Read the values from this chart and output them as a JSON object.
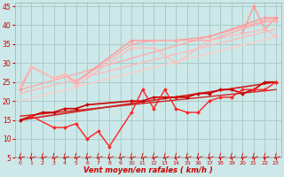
{
  "background_color": "#cce8e8",
  "grid_color": "#aacccc",
  "xlabel": "Vent moyen/en rafales ( km/h )",
  "xlabel_color": "#cc0000",
  "tick_color": "#cc0000",
  "xlim": [
    -0.5,
    23.5
  ],
  "ylim": [
    5,
    46
  ],
  "yticks": [
    5,
    10,
    15,
    20,
    25,
    30,
    35,
    40,
    45
  ],
  "xticks": [
    0,
    1,
    2,
    3,
    4,
    5,
    6,
    7,
    8,
    9,
    10,
    11,
    12,
    13,
    14,
    15,
    16,
    17,
    18,
    19,
    20,
    21,
    22,
    23
  ],
  "series": [
    {
      "x": [
        0,
        1,
        3,
        4,
        5,
        10,
        12,
        14,
        17,
        22,
        23
      ],
      "y": [
        23,
        29,
        26,
        27,
        25,
        36,
        36,
        36,
        37,
        42,
        42
      ],
      "color": "#ff9999",
      "lw": 1.0,
      "marker": "D",
      "ms": 2.0,
      "linestyle": "-"
    },
    {
      "x": [
        20,
        21,
        22,
        23
      ],
      "y": [
        38,
        45,
        39,
        42
      ],
      "color": "#ff9999",
      "lw": 1.0,
      "marker": "D",
      "ms": 2.0,
      "linestyle": "-"
    },
    {
      "x": [
        0,
        23
      ],
      "y": [
        23,
        42
      ],
      "color": "#ffaaaa",
      "lw": 1.0,
      "marker": null,
      "ms": 0,
      "linestyle": "-"
    },
    {
      "x": [
        0,
        23
      ],
      "y": [
        22,
        39
      ],
      "color": "#ffbbbb",
      "lw": 1.0,
      "marker": null,
      "ms": 0,
      "linestyle": "-"
    },
    {
      "x": [
        0,
        23
      ],
      "y": [
        20,
        37
      ],
      "color": "#ffcccc",
      "lw": 1.0,
      "marker": null,
      "ms": 0,
      "linestyle": "-"
    },
    {
      "x": [
        0,
        1,
        3,
        4,
        5,
        10,
        12,
        17,
        22,
        23
      ],
      "y": [
        24,
        29,
        26,
        27,
        25,
        35,
        36,
        36,
        41,
        41
      ],
      "color": "#ffaaaa",
      "lw": 1.0,
      "marker": "D",
      "ms": 2.0,
      "linestyle": "-"
    },
    {
      "x": [
        0,
        1,
        3,
        4,
        5,
        10,
        12,
        14,
        17,
        22,
        23
      ],
      "y": [
        24,
        29,
        26,
        27,
        24,
        34,
        34,
        30,
        36,
        39,
        37
      ],
      "color": "#ffbbbb",
      "lw": 1.0,
      "marker": "D",
      "ms": 2.0,
      "linestyle": "-"
    },
    {
      "x": [
        0,
        23
      ],
      "y": [
        15,
        25
      ],
      "color": "#cc2222",
      "lw": 1.2,
      "marker": null,
      "ms": 0,
      "linestyle": "-"
    },
    {
      "x": [
        0,
        23
      ],
      "y": [
        16,
        23
      ],
      "color": "#cc2222",
      "lw": 1.0,
      "marker": null,
      "ms": 0,
      "linestyle": "-"
    },
    {
      "x": [
        0,
        1,
        2,
        3,
        4,
        5,
        6,
        10,
        11,
        12,
        13,
        14,
        15,
        16,
        17,
        18,
        19,
        20,
        21,
        22,
        23
      ],
      "y": [
        15,
        16,
        17,
        17,
        18,
        18,
        19,
        20,
        20,
        21,
        21,
        21,
        21,
        22,
        22,
        23,
        23,
        22,
        23,
        25,
        25
      ],
      "color": "#cc0000",
      "lw": 1.2,
      "marker": "D",
      "ms": 2.0,
      "linestyle": "-"
    },
    {
      "x": [
        1,
        3,
        4,
        5,
        6,
        7,
        8,
        10,
        11,
        12,
        13,
        14,
        15,
        16,
        17,
        18,
        19,
        20,
        21,
        22,
        23
      ],
      "y": [
        16,
        13,
        13,
        14,
        10,
        12,
        8,
        17,
        23,
        18,
        23,
        18,
        17,
        17,
        20,
        21,
        21,
        23,
        23,
        23,
        25
      ],
      "color": "#ff2222",
      "lw": 1.0,
      "marker": "D",
      "ms": 2.0,
      "linestyle": "-"
    }
  ],
  "arrows_x": [
    0,
    1,
    2,
    3,
    4,
    5,
    6,
    7,
    8,
    9,
    10,
    11,
    12,
    13,
    14,
    15,
    16,
    17,
    18,
    19,
    20,
    21,
    22,
    23
  ]
}
